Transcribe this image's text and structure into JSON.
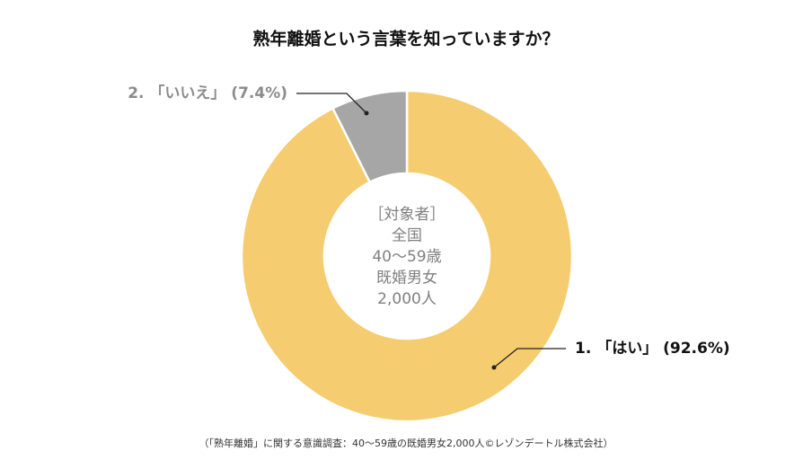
{
  "chart_data": {
    "type": "donut",
    "title": "熟年離婚という言葉を知っていますか？",
    "values": [
      92.6,
      7.4
    ],
    "value_labels": [
      "1. 「はい」 (92.6%)",
      "2. 「いいえ」 (7.4%)"
    ],
    "colors": [
      "#f5cd70",
      "#a6a6a6"
    ],
    "center_text": [
      "［対象者］",
      "全国",
      "40～59歳",
      "既婚男女",
      "2,000人"
    ],
    "footnote": "（「熟年離婚」に関する意識調査：40～59歳の既婚男女2,000人©レゾンデートル株式会社）"
  }
}
